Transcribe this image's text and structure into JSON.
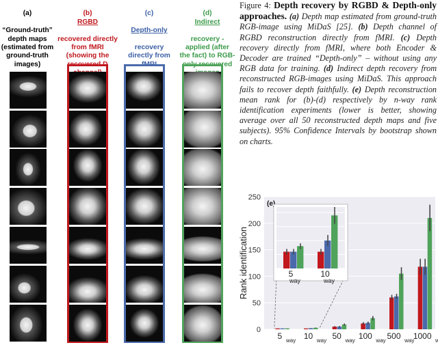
{
  "columns": [
    {
      "tag": "(a)",
      "title": "“Ground-truth” depth maps (estimated from ground-truth images)"
    },
    {
      "tag": "(b)",
      "title_main": "RGBD",
      "title_rest": "recovered directly from fMRI (showing the recovered D channel)"
    },
    {
      "tag": "(c)",
      "title_main": "Depth-only",
      "title_rest": "recovery directly from fMRI"
    },
    {
      "tag": "(d)",
      "title_main": "Indirect",
      "title_rest": "recovery - applied (after the fact) to RGB-only recovered images"
    }
  ],
  "caption": {
    "figure_label": "Figure 4:",
    "heading": "Depth recovery by RGBD & Depth-only approaches.",
    "a_tag": "(a)",
    "a_text": "Depth map estimated from ground-truth RGB-image using MiDaS [25].",
    "b_tag": "(b)",
    "b_text": "Depth channel of RGBD reconstruction directly from fMRI.",
    "c_tag": "(c)",
    "c_text": "Depth recovery directly from fMRI, where both Encoder & Decoder are trained “Depth-only” – without using any RGB data for training.",
    "d_tag": "(d)",
    "d_text": "Indirect depth recovery from reconstructed RGB-images using MiDaS. This approach fails to recover depth faithfully.",
    "e_tag": "(e)",
    "e_text": "Depth reconstruction mean rank for (b)-(d) respectively by n-way rank identification experiments (lower is better, showing average over all 50 reconstructed depth maps and five subjects). 95% Confidence Intervals by bootstrap shown on charts."
  },
  "chart_data": {
    "type": "bar",
    "panel_label": "(e)",
    "ylabel": "Rank identification",
    "ylim": [
      0,
      250
    ],
    "yticks": [
      "0",
      "50",
      "100",
      "150",
      "200",
      "250"
    ],
    "categories": [
      {
        "num": "5",
        "sub": "way"
      },
      {
        "num": "10",
        "sub": "way"
      },
      {
        "num": "50",
        "sub": "way"
      },
      {
        "num": "100",
        "sub": "way"
      },
      {
        "num": "500",
        "sub": "way"
      },
      {
        "num": "1000",
        "sub": "way"
      }
    ],
    "colors": [
      "#c0181e",
      "#4a6aab",
      "#4fa35a"
    ],
    "series": [
      {
        "values": [
          1.6,
          1.6,
          5,
          11,
          60,
          118
        ],
        "err": [
          0.1,
          0.1,
          1.0,
          2.5,
          5,
          15
        ]
      },
      {
        "values": [
          1.6,
          2.0,
          5,
          12,
          62,
          118
        ],
        "err": [
          0.1,
          0.2,
          1.2,
          2.5,
          5,
          15
        ]
      },
      {
        "values": [
          1.8,
          2.9,
          9,
          21,
          105,
          210
        ],
        "err": [
          0.1,
          0.3,
          2.0,
          4.0,
          12,
          25
        ]
      }
    ],
    "inset": {
      "categories": [
        {
          "num": "5",
          "sub": "way"
        },
        {
          "num": "10",
          "sub": "way"
        }
      ],
      "ylim": [
        1,
        3.2
      ]
    }
  }
}
